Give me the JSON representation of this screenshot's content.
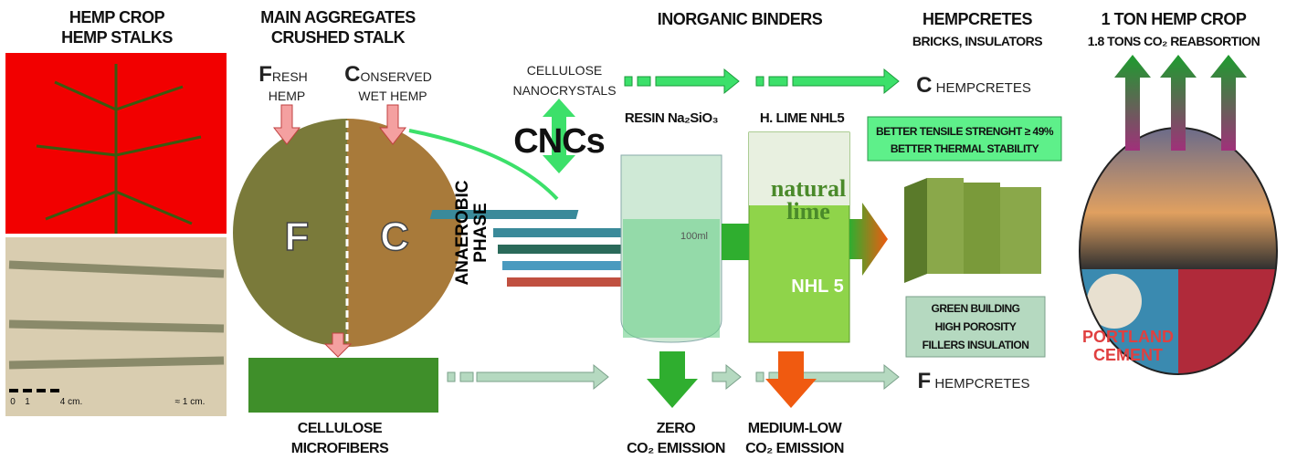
{
  "hemp_crop": {
    "title": [
      "HEMP CROP",
      "HEMP STALKS"
    ],
    "scale": [
      "0",
      "1",
      "4 cm.",
      "≈ 1 cm."
    ]
  },
  "aggregates": {
    "title": [
      "MAIN AGGREGATES",
      "CRUSHED STALK"
    ],
    "fresh": [
      "FRESH",
      "HEMP"
    ],
    "conserved": [
      "CONSERVED",
      "WET HEMP"
    ],
    "circle": [
      "F",
      "C"
    ],
    "microfibers": [
      "CELLULOSE",
      "MICROFIBERS"
    ]
  },
  "binders": {
    "title": "INORGANIC BINDERS",
    "nanocrystals": [
      "CELLULOSE",
      "NANOCRYSTALS"
    ],
    "cncs": "CNCs",
    "phase": [
      "ANAEROBIC",
      "PHASE"
    ],
    "resin": "RESIN Na₂SiO₃",
    "lime": "H. LIME NHL5",
    "bag": [
      "natural",
      "lime",
      "NHL 5"
    ],
    "beaker": "100ml",
    "zero": [
      "ZERO",
      "CO₂ EMISSION"
    ],
    "medium": [
      "MEDIUM-LOW",
      "CO₂ EMISSION"
    ]
  },
  "hempcretes": {
    "title": [
      "HEMPCRETES",
      "BRICKS, INSULATORS"
    ],
    "c_product": "C HEMPCRETES",
    "f_product": "F HEMPCRETES",
    "better": [
      "BETTER TENSILE STRENGHT ≥ 49%",
      "BETTER THERMAL STABILITY"
    ],
    "green": [
      "GREEN BUILDING",
      "HIGH POROSITY",
      "FILLERS INSULATION"
    ]
  },
  "reabsorption": {
    "title": [
      "1 TON HEMP CROP",
      "1.8 TONS CO₂ REABSORTION"
    ],
    "bags": [
      "PORTLAND",
      "CEMENT"
    ]
  }
}
